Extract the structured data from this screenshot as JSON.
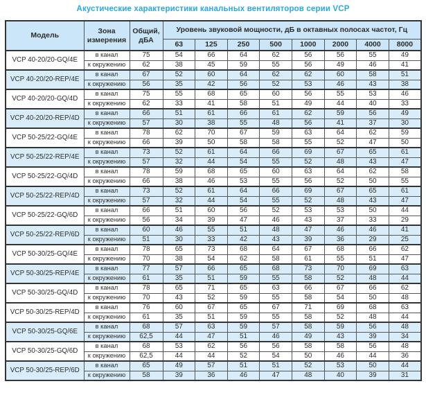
{
  "title": "Акустические характеристики канальных вентиляторов  серии VCP",
  "colors": {
    "title_accent": "#29a9e1",
    "header_bg": "#cbe6f8",
    "stripe_bg": "#d8edf9",
    "border_strong": "#333333",
    "border_thin": "#555555"
  },
  "table": {
    "headers": {
      "model": "Модель",
      "zone": "Зона измерения",
      "total": "Общий, дБА",
      "spl": "Уровень звуковой мощности, дБ в октавных полосах частот, Гц",
      "frequencies": [
        "63",
        "125",
        "250",
        "500",
        "1000",
        "2000",
        "4000",
        "8000"
      ]
    },
    "zone_labels": {
      "duct": "в канал",
      "ambient": "к окружению"
    },
    "rows": [
      {
        "model": "VCP 40-20/20-GQ/4E",
        "shaded": false,
        "duct": {
          "total": "75",
          "values": [
            54,
            66,
            64,
            62,
            56,
            56,
            55,
            49
          ]
        },
        "ambient": {
          "total": "62",
          "values": [
            38,
            45,
            59,
            55,
            56,
            49,
            46,
            41
          ]
        }
      },
      {
        "model": "VCP 40-20/20-REP/4E",
        "shaded": true,
        "duct": {
          "total": "67",
          "values": [
            52,
            60,
            64,
            62,
            62,
            60,
            58,
            51
          ]
        },
        "ambient": {
          "total": "56",
          "values": [
            35,
            42,
            56,
            52,
            53,
            46,
            43,
            38
          ]
        }
      },
      {
        "model": "VCP 40-20/20-GQ/4D",
        "shaded": false,
        "duct": {
          "total": "75",
          "values": [
            55,
            68,
            65,
            60,
            56,
            55,
            53,
            46
          ]
        },
        "ambient": {
          "total": "62",
          "values": [
            33,
            41,
            58,
            51,
            49,
            44,
            40,
            33
          ]
        }
      },
      {
        "model": "VCP 40-20/20-REP/4D",
        "shaded": true,
        "duct": {
          "total": "66",
          "values": [
            51,
            61,
            66,
            61,
            62,
            59,
            56,
            49
          ]
        },
        "ambient": {
          "total": "57",
          "values": [
            30,
            38,
            55,
            48,
            56,
            41,
            37,
            30
          ]
        }
      },
      {
        "model": "VCP 50-25/22-GQ/4E",
        "shaded": false,
        "duct": {
          "total": "78",
          "values": [
            62,
            70,
            67,
            59,
            63,
            64,
            62,
            59
          ]
        },
        "ambient": {
          "total": "66",
          "values": [
            39,
            50,
            58,
            58,
            55,
            52,
            47,
            50
          ]
        }
      },
      {
        "model": "VCP 50-25/22-REP/4E",
        "shaded": true,
        "duct": {
          "total": "73",
          "values": [
            52,
            61,
            64,
            66,
            69,
            67,
            65,
            61
          ]
        },
        "ambient": {
          "total": "57",
          "values": [
            32,
            44,
            54,
            55,
            52,
            48,
            43,
            47
          ]
        }
      },
      {
        "model": "VCP 50-25/22-GQ/4D",
        "shaded": false,
        "duct": {
          "total": "78",
          "values": [
            59,
            68,
            65,
            60,
            63,
            64,
            62,
            58
          ]
        },
        "ambient": {
          "total": "66",
          "values": [
            38,
            46,
            53,
            55,
            56,
            52,
            50,
            55
          ]
        }
      },
      {
        "model": "VCP 50-25/22-REP/4D",
        "shaded": true,
        "duct": {
          "total": "73",
          "values": [
            52,
            61,
            64,
            66,
            69,
            67,
            65,
            61
          ]
        },
        "ambient": {
          "total": "57",
          "values": [
            32,
            44,
            54,
            55,
            52,
            48,
            43,
            47
          ]
        }
      },
      {
        "model": "VCP 50-25/22-GQ/6D",
        "shaded": false,
        "duct": {
          "total": "66",
          "values": [
            51,
            60,
            56,
            52,
            53,
            53,
            50,
            44
          ]
        },
        "ambient": {
          "total": "56",
          "values": [
            34,
            39,
            47,
            46,
            43,
            37,
            33,
            29
          ]
        }
      },
      {
        "model": "VCP 50-25/22-REP/6D",
        "shaded": true,
        "duct": {
          "total": "60",
          "values": [
            46,
            55,
            51,
            48,
            47,
            46,
            46,
            41
          ]
        },
        "ambient": {
          "total": "51",
          "values": [
            30,
            33,
            42,
            43,
            39,
            36,
            29,
            25
          ]
        }
      },
      {
        "model": "VCP 50-30/25-GQ/4E",
        "shaded": false,
        "duct": {
          "total": "78",
          "values": [
            65,
            73,
            68,
            64,
            67,
            68,
            66,
            62
          ]
        },
        "ambient": {
          "total": "70",
          "values": [
            38,
            54,
            62,
            58,
            61,
            55,
            51,
            47
          ]
        }
      },
      {
        "model": "VCP 50-30/25-REP/4E",
        "shaded": true,
        "duct": {
          "total": "77",
          "values": [
            57,
            66,
            65,
            68,
            73,
            70,
            69,
            63
          ]
        },
        "ambient": {
          "total": "61",
          "values": [
            35,
            51,
            59,
            55,
            58,
            52,
            48,
            44
          ]
        }
      },
      {
        "model": "VCP 50-30/25-GQ/4D",
        "shaded": false,
        "duct": {
          "total": "78",
          "values": [
            65,
            71,
            65,
            63,
            66,
            67,
            66,
            62
          ]
        },
        "ambient": {
          "total": "70",
          "values": [
            43,
            52,
            59,
            55,
            58,
            54,
            50,
            48
          ]
        }
      },
      {
        "model": "VCP 50-30/25-REP/4D",
        "shaded": false,
        "duct": {
          "total": "76",
          "values": [
            60,
            67,
            65,
            67,
            71,
            69,
            68,
            63
          ]
        },
        "ambient": {
          "total": "61",
          "values": [
            35,
            51,
            59,
            55,
            58,
            52,
            48,
            44
          ]
        }
      },
      {
        "model": "VCP 50-30/25-GQ/6E",
        "shaded": true,
        "duct": {
          "total": "68",
          "values": [
            57,
            63,
            59,
            57,
            58,
            59,
            56,
            48
          ]
        },
        "ambient": {
          "total": "62,5",
          "values": [
            44,
            47,
            51,
            46,
            49,
            43,
            39,
            34
          ]
        }
      },
      {
        "model": "VCP 50-30/25-GQ/6D",
        "shaded": false,
        "duct": {
          "total": "68",
          "values": [
            53,
            62,
            56,
            56,
            58,
            58,
            56,
            48
          ]
        },
        "ambient": {
          "total": "62,5",
          "values": [
            44,
            44,
            52,
            54,
            50,
            46,
            44,
            36
          ]
        }
      },
      {
        "model": "VCP 50-30/25-REP/6D",
        "shaded": true,
        "duct": {
          "total": "65",
          "values": [
            49,
            57,
            51,
            51,
            52,
            53,
            50,
            44
          ]
        },
        "ambient": {
          "total": "58",
          "values": [
            39,
            36,
            46,
            47,
            48,
            40,
            39,
            31
          ]
        }
      }
    ]
  }
}
